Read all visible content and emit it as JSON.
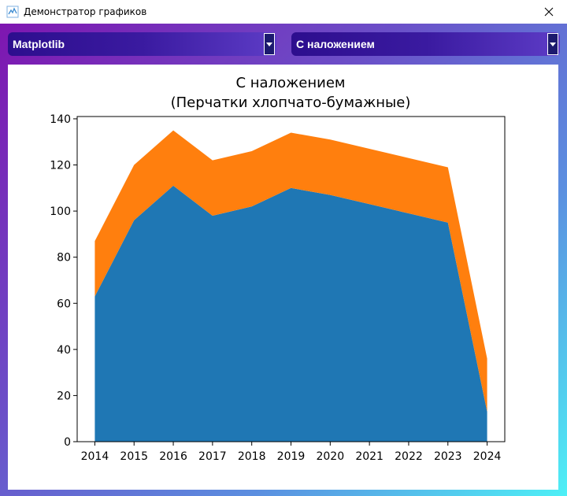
{
  "window": {
    "title": "Демонстратор графиков",
    "close_label": "✕"
  },
  "controls": {
    "library_select": {
      "value": "Matplotlib"
    },
    "mode_select": {
      "value": "С наложением"
    }
  },
  "colors": {
    "series_1": "#1f77b4",
    "series_2": "#ff7f0e"
  },
  "chart_data": {
    "type": "area",
    "title": "С наложением",
    "subtitle": "(Перчатки хлопчато-бумажные)",
    "xlabel": "",
    "ylabel": "",
    "x": [
      2014,
      2015,
      2016,
      2017,
      2018,
      2019,
      2020,
      2021,
      2022,
      2023,
      2024
    ],
    "x_ticks": [
      "2014",
      "2015",
      "2016",
      "2017",
      "2018",
      "2019",
      "2020",
      "2021",
      "2022",
      "2023",
      "2024"
    ],
    "y_ticks": [
      "0",
      "20",
      "40",
      "60",
      "80",
      "100",
      "120",
      "140"
    ],
    "ylim": [
      0,
      141
    ],
    "xlim": [
      2013.55,
      2024.45
    ],
    "grid": false,
    "stacked": true,
    "series": [
      {
        "values": [
          63,
          96,
          111,
          98,
          102,
          110,
          107,
          103,
          99,
          95,
          13
        ],
        "color": "#1f77b4"
      },
      {
        "values": [
          24,
          24,
          24,
          24,
          24,
          24,
          24,
          24,
          24,
          24,
          23
        ],
        "color": "#ff7f0e"
      }
    ]
  }
}
